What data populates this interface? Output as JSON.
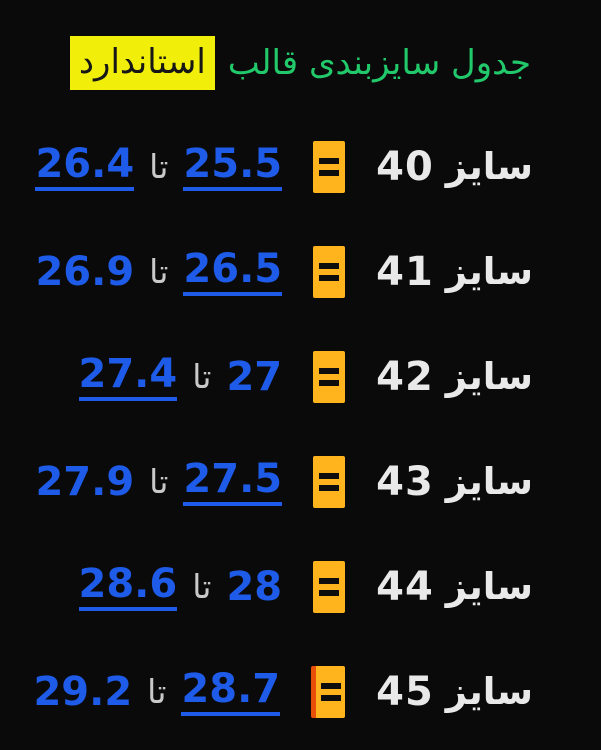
{
  "title": {
    "prefix": "جدول سایزبندی قالب",
    "highlight": "استاندارد"
  },
  "equals_symbol": "=",
  "rows": [
    {
      "label": "سایز",
      "size": "40",
      "to_word": "تا",
      "range_start": "25.5",
      "range_start_underlined": true,
      "range_end": "26.4",
      "range_end_underlined": true
    },
    {
      "label": "سایز",
      "size": "41",
      "to_word": "تا",
      "range_start": "26.5",
      "range_start_underlined": true,
      "range_end": "26.9",
      "range_end_underlined": false
    },
    {
      "label": "سایز",
      "size": "42",
      "to_word": "تا",
      "range_start": "27",
      "range_start_underlined": false,
      "range_end": "27.4",
      "range_end_underlined": true
    },
    {
      "label": "سایز",
      "size": "43",
      "to_word": "تا",
      "range_start": "27.5",
      "range_start_underlined": true,
      "range_end": "27.9",
      "range_end_underlined": false
    },
    {
      "label": "سایز",
      "size": "44",
      "to_word": "تا",
      "range_start": "28",
      "range_start_underlined": false,
      "range_end": "28.6",
      "range_end_underlined": true
    },
    {
      "label": "سایز",
      "size": "45",
      "to_word": "تا",
      "range_start": "28.7",
      "range_start_underlined": true,
      "range_end": "29.2",
      "range_end_underlined": false
    }
  ],
  "colors": {
    "background": "#0a0a0a",
    "title_green": "#22c96b",
    "highlight_yellow": "#f1ee0a",
    "highlight_text": "#161616",
    "size_text_white": "#e9e9e9",
    "number_blue": "#1e5be8",
    "to_word_gray": "#c9c9c9",
    "equals_box_orange": "#ffb41e",
    "equals_bars_black": "#0d0d0d",
    "last_row_stripe_red": "#e8500a"
  }
}
